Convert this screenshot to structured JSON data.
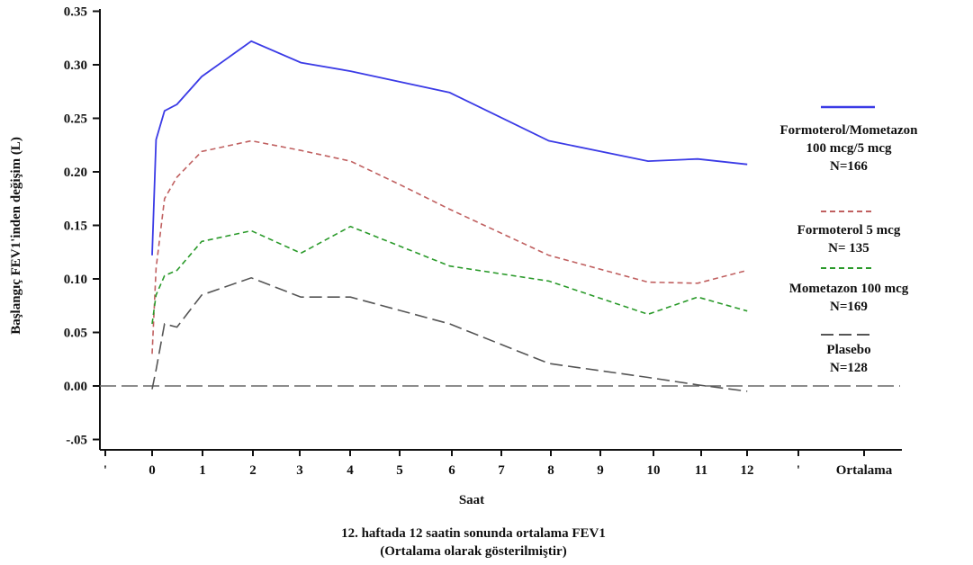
{
  "chart_data": {
    "type": "line",
    "title": "12. haftada 12 saatin sonunda ortalama FEV1",
    "subtitle": "(Ortalama olarak gösterilmiştir)",
    "xlabel": "Saat",
    "ylabel": "Başlangıç FEV1'inden değişim (L)",
    "ylim": [
      -0.06,
      0.35
    ],
    "yticks": [
      0.35,
      0.3,
      0.25,
      0.2,
      0.15,
      0.1,
      0.05,
      0.0,
      -0.05
    ],
    "ytick_labels": [
      "0.35",
      "0.30",
      "0.25",
      "0.20",
      "0.15",
      "0.10",
      "0.05",
      "0.00",
      "-.05"
    ],
    "xtick_labels": [
      "'",
      "0",
      "1",
      "2",
      "3",
      "4",
      "5",
      "6",
      "7",
      "8",
      "9",
      "10",
      "11",
      "12",
      "'",
      "Ortalama"
    ],
    "grid": false,
    "legend_position": "right",
    "series": [
      {
        "name": "Formoterol/Mometazon 100 mcg/5 mcg N=166",
        "legend_lines": [
          "Formoterol/Mometazon",
          "100 mcg/5 mcg",
          "N=166"
        ],
        "color": "#3b3be6",
        "dash": "solid",
        "x": [
          0,
          0.08,
          0.25,
          0.5,
          1,
          2,
          3,
          4,
          5,
          6,
          8,
          10,
          11,
          12
        ],
        "y": [
          0.122,
          0.23,
          0.257,
          0.263,
          0.289,
          0.322,
          0.302,
          0.294,
          0.284,
          0.274,
          0.229,
          0.21,
          0.212,
          0.207
        ]
      },
      {
        "name": "Formoterol 5 mcg N= 135",
        "legend_lines": [
          "Formoterol 5 mcg",
          "N= 135"
        ],
        "color": "#c06060",
        "dash": "dashed",
        "x": [
          0,
          0.08,
          0.25,
          0.5,
          1,
          2,
          3,
          4,
          5,
          6,
          8,
          10,
          11,
          12
        ],
        "y": [
          0.03,
          0.11,
          0.175,
          0.195,
          0.219,
          0.229,
          0.22,
          0.21,
          0.188,
          0.165,
          0.122,
          0.097,
          0.096,
          0.108
        ]
      },
      {
        "name": "Mometazon 100 mcg N=169",
        "legend_lines": [
          "Mometazon 100 mcg",
          "N=169"
        ],
        "color": "#2a9a2a",
        "dash": "dashed",
        "x": [
          0,
          0.08,
          0.25,
          0.5,
          1,
          2,
          3,
          4,
          6,
          8,
          10,
          11,
          12
        ],
        "y": [
          0.058,
          0.085,
          0.103,
          0.108,
          0.135,
          0.145,
          0.124,
          0.149,
          0.112,
          0.098,
          0.067,
          0.083,
          0.07
        ]
      },
      {
        "name": "Plasebo N=128",
        "legend_lines": [
          "Plasebo",
          "N=128"
        ],
        "color": "#555555",
        "dash": "longdash",
        "x": [
          0,
          0.08,
          0.25,
          0.5,
          1,
          2,
          3,
          4,
          6,
          8,
          10,
          11,
          12
        ],
        "y": [
          -0.003,
          0.015,
          0.058,
          0.055,
          0.085,
          0.101,
          0.083,
          0.083,
          0.058,
          0.021,
          0.008,
          0.001,
          -0.005
        ]
      }
    ]
  },
  "styles": {
    "axis_color": "#111111",
    "zero_line_color": "#666666"
  }
}
